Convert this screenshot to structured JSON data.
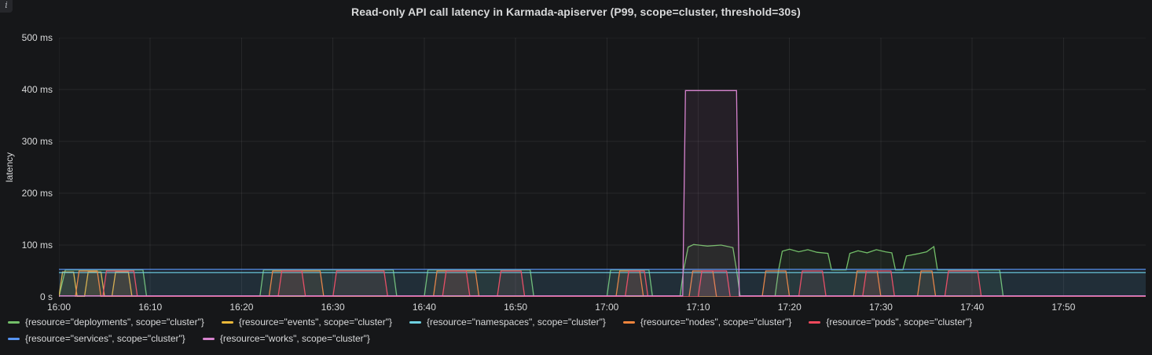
{
  "panel": {
    "title": "Read-only API call latency in Karmada-apiserver (P99, scope=cluster, threshold=30s)",
    "info_icon": "i"
  },
  "chart_data": {
    "type": "line",
    "title": "Read-only API call latency in Karmada-apiserver (P99, scope=cluster, threshold=30s)",
    "xlabel": "",
    "ylabel": "latency",
    "grid": true,
    "legend_position": "bottom",
    "x_axis": {
      "unit": "time",
      "domain": [
        0,
        119
      ],
      "ticks": [
        {
          "m": 0,
          "label": "16:00"
        },
        {
          "m": 10,
          "label": "16:10"
        },
        {
          "m": 20,
          "label": "16:20"
        },
        {
          "m": 30,
          "label": "16:30"
        },
        {
          "m": 40,
          "label": "16:40"
        },
        {
          "m": 50,
          "label": "16:50"
        },
        {
          "m": 60,
          "label": "17:00"
        },
        {
          "m": 70,
          "label": "17:10"
        },
        {
          "m": 80,
          "label": "17:20"
        },
        {
          "m": 90,
          "label": "17:30"
        },
        {
          "m": 100,
          "label": "17:40"
        },
        {
          "m": 110,
          "label": "17:50"
        }
      ]
    },
    "y_axis": {
      "max": 500,
      "ticks": [
        {
          "v": 0,
          "label": "0 s"
        },
        {
          "v": 100,
          "label": "100 ms"
        },
        {
          "v": 200,
          "label": "200 ms"
        },
        {
          "v": 300,
          "label": "300 ms"
        },
        {
          "v": 400,
          "label": "400 ms"
        },
        {
          "v": 500,
          "label": "500 ms"
        }
      ]
    },
    "series": [
      {
        "name": "deployments",
        "label": "{resource=\"deployments\", scope=\"cluster\"}",
        "color": "#73BF69",
        "points": [
          [
            0,
            0
          ],
          [
            0.7,
            52
          ],
          [
            9.2,
            52
          ],
          [
            9.6,
            0
          ],
          [
            22,
            0
          ],
          [
            22.4,
            52
          ],
          [
            36.6,
            52
          ],
          [
            37,
            0
          ],
          [
            40,
            0
          ],
          [
            40.4,
            52
          ],
          [
            51.6,
            52
          ],
          [
            52,
            0
          ],
          [
            60,
            0
          ],
          [
            60.4,
            52
          ],
          [
            64.6,
            52
          ],
          [
            65,
            0
          ],
          [
            68,
            0
          ],
          [
            68.4,
            52
          ],
          [
            68.9,
            96
          ],
          [
            69.5,
            101
          ],
          [
            71,
            98
          ],
          [
            72.5,
            100
          ],
          [
            73.8,
            95
          ],
          [
            74.2,
            52
          ],
          [
            74.6,
            0
          ],
          [
            78.4,
            0
          ],
          [
            78.8,
            52
          ],
          [
            79.2,
            88
          ],
          [
            80,
            92
          ],
          [
            81,
            87
          ],
          [
            82,
            91
          ],
          [
            83,
            86
          ],
          [
            84.2,
            84
          ],
          [
            84.6,
            52
          ],
          [
            86.2,
            52
          ],
          [
            86.6,
            84
          ],
          [
            87.5,
            89
          ],
          [
            88.5,
            85
          ],
          [
            89.5,
            91
          ],
          [
            90.5,
            87
          ],
          [
            91.2,
            85
          ],
          [
            91.6,
            52
          ],
          [
            92.4,
            52
          ],
          [
            92.8,
            79
          ],
          [
            94,
            83
          ],
          [
            95,
            87
          ],
          [
            95.8,
            97
          ],
          [
            96.2,
            52
          ],
          [
            97,
            52
          ],
          [
            103,
            52
          ],
          [
            103.4,
            0
          ],
          [
            119,
            0
          ]
        ]
      },
      {
        "name": "events",
        "label": "{resource=\"events\", scope=\"cluster\"}",
        "color": "#EAB839",
        "points": [
          [
            0,
            0
          ],
          [
            0.4,
            48
          ],
          [
            1.6,
            48
          ],
          [
            2,
            0
          ],
          [
            2.8,
            0
          ],
          [
            3.2,
            48
          ],
          [
            4.6,
            48
          ],
          [
            5,
            0
          ],
          [
            5.8,
            0
          ],
          [
            6.2,
            48
          ],
          [
            7.6,
            48
          ],
          [
            8,
            0
          ],
          [
            119,
            0
          ]
        ]
      },
      {
        "name": "namespaces",
        "label": "{resource=\"namespaces\", scope=\"cluster\"}",
        "color": "#6ED0E0",
        "points": [
          [
            0,
            47
          ],
          [
            119,
            47
          ]
        ]
      },
      {
        "name": "nodes",
        "label": "{resource=\"nodes\", scope=\"cluster\"}",
        "color": "#EF843C",
        "points": [
          [
            1.8,
            0
          ],
          [
            2.2,
            50
          ],
          [
            4.2,
            50
          ],
          [
            4.6,
            0
          ],
          [
            23,
            0
          ],
          [
            23.4,
            50
          ],
          [
            28.6,
            50
          ],
          [
            29,
            0
          ],
          [
            41,
            0
          ],
          [
            41.4,
            50
          ],
          [
            45.6,
            50
          ],
          [
            46,
            0
          ],
          [
            61,
            0
          ],
          [
            61.4,
            50
          ],
          [
            63.6,
            50
          ],
          [
            64,
            0
          ],
          [
            69,
            0
          ],
          [
            69.4,
            50
          ],
          [
            71.6,
            50
          ],
          [
            72,
            0
          ],
          [
            77,
            0
          ],
          [
            77.4,
            50
          ],
          [
            79.6,
            50
          ],
          [
            80,
            0
          ],
          [
            87,
            0
          ],
          [
            87.4,
            50
          ],
          [
            89.6,
            50
          ],
          [
            90,
            0
          ],
          [
            94,
            0
          ],
          [
            94.4,
            50
          ],
          [
            95.6,
            50
          ],
          [
            96,
            0
          ],
          [
            119,
            0
          ]
        ]
      },
      {
        "name": "pods",
        "label": "{resource=\"pods\", scope=\"cluster\"}",
        "color": "#F2495C",
        "points": [
          [
            4.8,
            0
          ],
          [
            5.2,
            50
          ],
          [
            8.2,
            50
          ],
          [
            8.6,
            0
          ],
          [
            24,
            0
          ],
          [
            24.4,
            50
          ],
          [
            26.6,
            50
          ],
          [
            27,
            0
          ],
          [
            30,
            0
          ],
          [
            30.4,
            50
          ],
          [
            35.6,
            50
          ],
          [
            36,
            0
          ],
          [
            42,
            0
          ],
          [
            42.4,
            50
          ],
          [
            44.6,
            50
          ],
          [
            45,
            0
          ],
          [
            48,
            0
          ],
          [
            48.4,
            50
          ],
          [
            50.6,
            50
          ],
          [
            51,
            0
          ],
          [
            62,
            0
          ],
          [
            62.4,
            50
          ],
          [
            64.1,
            50
          ],
          [
            64.5,
            0
          ],
          [
            70,
            0
          ],
          [
            70.4,
            50
          ],
          [
            73.1,
            50
          ],
          [
            73.5,
            0
          ],
          [
            81,
            0
          ],
          [
            81.4,
            50
          ],
          [
            83.6,
            50
          ],
          [
            84,
            0
          ],
          [
            88,
            0
          ],
          [
            88.4,
            50
          ],
          [
            91.1,
            50
          ],
          [
            91.5,
            0
          ],
          [
            97,
            0
          ],
          [
            97.4,
            50
          ],
          [
            100.6,
            50
          ],
          [
            101,
            0
          ],
          [
            119,
            0
          ]
        ]
      },
      {
        "name": "services",
        "label": "{resource=\"services\", scope=\"cluster\"}",
        "color": "#5794F2",
        "points": [
          [
            0,
            53
          ],
          [
            119,
            53
          ]
        ]
      },
      {
        "name": "works",
        "label": "{resource=\"works\", scope=\"cluster\"}",
        "color": "#D683CE",
        "points": [
          [
            0,
            2
          ],
          [
            68.3,
            2
          ],
          [
            68.6,
            398
          ],
          [
            74.2,
            398
          ],
          [
            74.5,
            2
          ],
          [
            119,
            2
          ]
        ]
      }
    ]
  }
}
